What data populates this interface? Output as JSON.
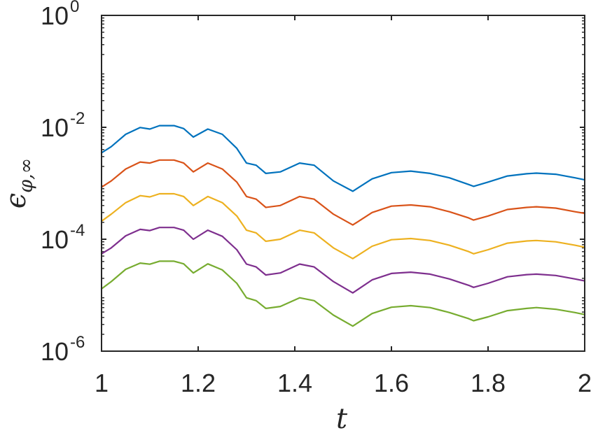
{
  "chart_data": {
    "type": "line",
    "title": "",
    "xlabel": "t",
    "ylabel": {
      "base": "ϵ",
      "subscript": "φ,∞"
    },
    "xlim": [
      1,
      2
    ],
    "ylim": [
      1e-06,
      1
    ],
    "yscale": "log",
    "grid": false,
    "legend": "none",
    "x_ticks": [
      "1",
      "1.2",
      "1.4",
      "1.6",
      "1.8",
      "2"
    ],
    "y_ticks": [
      {
        "base": "10",
        "exp": "0"
      },
      {
        "base": "10",
        "exp": "-2"
      },
      {
        "base": "10",
        "exp": "-4"
      },
      {
        "base": "10",
        "exp": "-6"
      }
    ],
    "x_tick_values": [
      1,
      1.2,
      1.4,
      1.6,
      1.8,
      2
    ],
    "y_tick_values": [
      1,
      0.01,
      0.0001,
      1e-06
    ],
    "x": [
      1.0,
      1.02,
      1.05,
      1.08,
      1.1,
      1.12,
      1.15,
      1.17,
      1.19,
      1.22,
      1.25,
      1.28,
      1.3,
      1.32,
      1.34,
      1.37,
      1.41,
      1.44,
      1.48,
      1.52,
      1.56,
      1.6,
      1.64,
      1.68,
      1.72,
      1.76,
      1.77,
      1.8,
      1.84,
      1.88,
      1.9,
      1.94,
      1.98,
      2.0
    ],
    "series": [
      {
        "color": "#0072BD",
        "values": [
          0.0035,
          0.0045,
          0.0075,
          0.0099,
          0.0093,
          0.0107,
          0.0107,
          0.0095,
          0.0067,
          0.0093,
          0.0075,
          0.0042,
          0.0023,
          0.0021,
          0.0015,
          0.0016,
          0.0023,
          0.0021,
          0.0011,
          0.00072,
          0.0012,
          0.00155,
          0.00165,
          0.0015,
          0.00125,
          0.00095,
          0.00088,
          0.00105,
          0.00135,
          0.00148,
          0.00152,
          0.00145,
          0.00125,
          0.00115
        ]
      },
      {
        "color": "#D95319",
        "values": [
          0.00085,
          0.0011,
          0.0018,
          0.0024,
          0.0023,
          0.0026,
          0.0026,
          0.0023,
          0.0016,
          0.0023,
          0.0018,
          0.00105,
          0.00058,
          0.00052,
          0.00037,
          0.0004,
          0.00058,
          0.00052,
          0.00028,
          0.00018,
          0.0003,
          0.00039,
          0.00041,
          0.00038,
          0.00031,
          0.00024,
          0.00022,
          0.00026,
          0.00034,
          0.00037,
          0.00038,
          0.00036,
          0.00031,
          0.00029
        ]
      },
      {
        "color": "#EDB120",
        "values": [
          0.00021,
          0.00028,
          0.00045,
          0.0006,
          0.00057,
          0.00065,
          0.00065,
          0.00058,
          0.0004,
          0.00058,
          0.00045,
          0.00026,
          0.000145,
          0.00013,
          9.2e-05,
          0.0001,
          0.000145,
          0.00013,
          7e-05,
          4.5e-05,
          7.5e-05,
          9.8e-05,
          0.000103,
          9.5e-05,
          7.8e-05,
          6e-05,
          5.5e-05,
          6.5e-05,
          8.5e-05,
          9.3e-05,
          9.5e-05,
          9e-05,
          7.8e-05,
          7.2e-05
        ]
      },
      {
        "color": "#7E2F8E",
        "values": [
          5.5e-05,
          7e-05,
          0.000115,
          0.00015,
          0.000143,
          0.000162,
          0.000162,
          0.000145,
          0.0001,
          0.000145,
          0.000113,
          6.5e-05,
          3.6e-05,
          3.2e-05,
          2.3e-05,
          2.5e-05,
          3.6e-05,
          3.2e-05,
          1.75e-05,
          1.1e-05,
          1.88e-05,
          2.45e-05,
          2.58e-05,
          2.38e-05,
          1.95e-05,
          1.5e-05,
          1.38e-05,
          1.63e-05,
          2.13e-05,
          2.33e-05,
          2.38e-05,
          2.25e-05,
          1.95e-05,
          1.8e-05
        ]
      },
      {
        "color": "#77AC30",
        "values": [
          1.3e-05,
          1.75e-05,
          2.9e-05,
          3.75e-05,
          3.58e-05,
          4.05e-05,
          4.05e-05,
          3.63e-05,
          2.5e-05,
          3.63e-05,
          2.83e-05,
          1.63e-05,
          9e-06,
          8e-06,
          5.8e-06,
          6.3e-06,
          9e-06,
          8e-06,
          4.4e-06,
          2.8e-06,
          4.7e-06,
          6.1e-06,
          6.5e-06,
          6e-06,
          4.9e-06,
          3.8e-06,
          3.5e-06,
          4.1e-06,
          5.3e-06,
          5.8e-06,
          6e-06,
          5.6e-06,
          4.9e-06,
          4.5e-06
        ]
      }
    ]
  }
}
